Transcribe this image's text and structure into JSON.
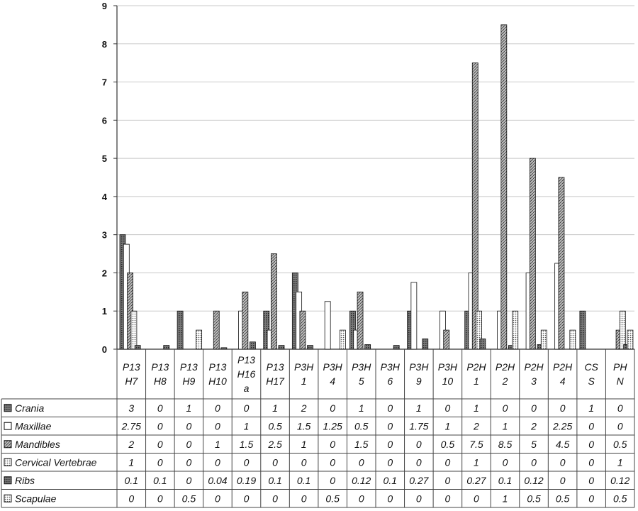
{
  "chart_data": {
    "type": "bar",
    "ylim": [
      0,
      9
    ],
    "yticks": [
      "0",
      "1",
      "2",
      "3",
      "4",
      "5",
      "6",
      "7",
      "8",
      "9"
    ],
    "grid": true,
    "legend_placement": "data-table-left",
    "categories": [
      [
        "P13",
        "H7"
      ],
      [
        "P13",
        "H8"
      ],
      [
        "P13",
        "H9"
      ],
      [
        "P13",
        "H10"
      ],
      [
        "P13",
        "H16",
        "a"
      ],
      [
        "P13",
        "H17"
      ],
      [
        "P3H",
        "1"
      ],
      [
        "P3H",
        "4"
      ],
      [
        "P3H",
        "5"
      ],
      [
        "P3H",
        "6"
      ],
      [
        "P3H",
        "9"
      ],
      [
        "P3H",
        "10"
      ],
      [
        "P2H",
        "1"
      ],
      [
        "P2H",
        "2"
      ],
      [
        "P2H",
        "3"
      ],
      [
        "P2H",
        "4"
      ],
      [
        "CS",
        "S"
      ],
      [
        "PH",
        "N"
      ]
    ],
    "series": [
      {
        "name": "Crania",
        "color": "#2b2b2b",
        "values": [
          3,
          0,
          1,
          0,
          0,
          1,
          2,
          0,
          1,
          0,
          1,
          0,
          1,
          0,
          0,
          0,
          1,
          0
        ],
        "labels": [
          "3",
          "0",
          "1",
          "0",
          "0",
          "1",
          "2",
          "0",
          "1",
          "0",
          "1",
          "0",
          "1",
          "0",
          "0",
          "0",
          "1",
          "0"
        ]
      },
      {
        "name": "Maxillae",
        "color": "#ffffff",
        "values": [
          2.75,
          0,
          0,
          0,
          1,
          0.5,
          1.5,
          1.25,
          0.5,
          0,
          1.75,
          1,
          2,
          1,
          2,
          2.25,
          0,
          0
        ],
        "labels": [
          "2.75",
          "0",
          "0",
          "0",
          "1",
          "0.5",
          "1.5",
          "1.25",
          "0.5",
          "0",
          "1.75",
          "1",
          "2",
          "1",
          "2",
          "2.25",
          "0",
          "0"
        ]
      },
      {
        "name": "Mandibles",
        "color": "#4a4a4a",
        "values": [
          2,
          0,
          0,
          1,
          1.5,
          2.5,
          1,
          0,
          1.5,
          0,
          0,
          0.5,
          7.5,
          8.5,
          5,
          4.5,
          0,
          0.5
        ],
        "labels": [
          "2",
          "0",
          "0",
          "1",
          "1.5",
          "2.5",
          "1",
          "0",
          "1.5",
          "0",
          "0",
          "0.5",
          "7.5",
          "8.5",
          "5",
          "4.5",
          "0",
          "0.5"
        ]
      },
      {
        "name": "Cervical Vertebrae",
        "color": "#f2f2f2",
        "values": [
          1,
          0,
          0,
          0,
          0,
          0,
          0,
          0,
          0,
          0,
          0,
          0,
          1,
          0,
          0,
          0,
          0,
          1
        ],
        "labels": [
          "1",
          "0",
          "0",
          "0",
          "0",
          "0",
          "0",
          "0",
          "0",
          "0",
          "0",
          "0",
          "1",
          "0",
          "0",
          "0",
          "0",
          "1"
        ]
      },
      {
        "name": "Ribs",
        "color": "#8a8a8a",
        "values": [
          0.1,
          0.1,
          0,
          0.04,
          0.19,
          0.1,
          0.1,
          0,
          0.12,
          0.1,
          0.27,
          0,
          0.27,
          0.1,
          0.12,
          0,
          0,
          0.12
        ],
        "labels": [
          "0.1",
          "0.1",
          "0",
          "0.04",
          "0.19",
          "0.1",
          "0.1",
          "0",
          "0.12",
          "0.1",
          "0.27",
          "0",
          "0.27",
          "0.1",
          "0.12",
          "0",
          "0",
          "0.12"
        ]
      },
      {
        "name": "Scapulae",
        "color": "#d6d6d6",
        "values": [
          0,
          0,
          0.5,
          0,
          0,
          0,
          0,
          0.5,
          0,
          0,
          0,
          0,
          0,
          1,
          0.5,
          0.5,
          0,
          0.5
        ],
        "labels": [
          "0",
          "0",
          "0.5",
          "0",
          "0",
          "0",
          "0",
          "0.5",
          "0",
          "0",
          "0",
          "0",
          "0",
          "1",
          "0.5",
          "0.5",
          "0",
          "0.5"
        ]
      }
    ]
  }
}
